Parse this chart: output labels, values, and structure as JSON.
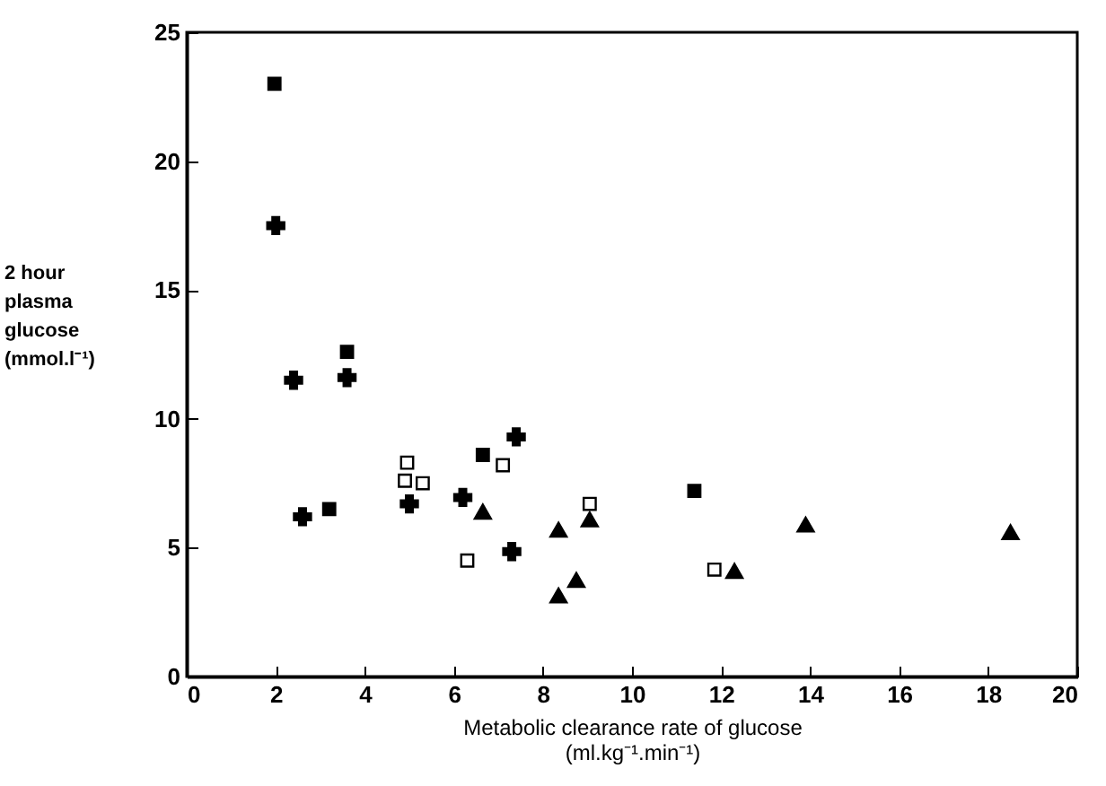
{
  "chart_data": {
    "type": "scatter",
    "xlabel": "Metabolic clearance rate of glucose\n(ml.kg⁻¹.min⁻¹)",
    "ylabel": "2 hour\nplasma\nglucose\n(mmol.l⁻¹)",
    "xlim": [
      0,
      20
    ],
    "ylim": [
      0,
      25
    ],
    "xticks": [
      0,
      2,
      4,
      6,
      8,
      10,
      12,
      14,
      16,
      18,
      20
    ],
    "yticks": [
      0,
      5,
      10,
      15,
      20,
      25
    ],
    "grid": false,
    "series": [
      {
        "color": "#000000",
        "marker": "square",
        "x": [
          1.97,
          3.6,
          3.2,
          6.65,
          11.4
        ],
        "values": [
          23.0,
          12.6,
          6.5,
          8.6,
          7.2
        ]
      },
      {
        "color": "#000000",
        "marker": "cross",
        "x": [
          2.0,
          2.4,
          3.6,
          2.6,
          5.0,
          6.2,
          7.4,
          7.3
        ],
        "values": [
          17.5,
          11.5,
          11.6,
          6.2,
          6.7,
          6.95,
          9.3,
          4.85
        ]
      },
      {
        "color": "#ffffff",
        "marker": "square",
        "x": [
          4.95,
          4.9,
          5.3,
          7.1,
          6.3,
          9.05,
          11.85
        ],
        "values": [
          8.3,
          7.6,
          7.5,
          8.2,
          4.5,
          6.7,
          4.15
        ]
      },
      {
        "color": "#000000",
        "marker": "triangle",
        "x": [
          6.65,
          8.35,
          9.05,
          8.35,
          8.75,
          12.3,
          13.9,
          18.5
        ],
        "values": [
          6.4,
          5.7,
          6.1,
          3.15,
          3.75,
          4.1,
          5.9,
          5.6
        ]
      }
    ]
  }
}
